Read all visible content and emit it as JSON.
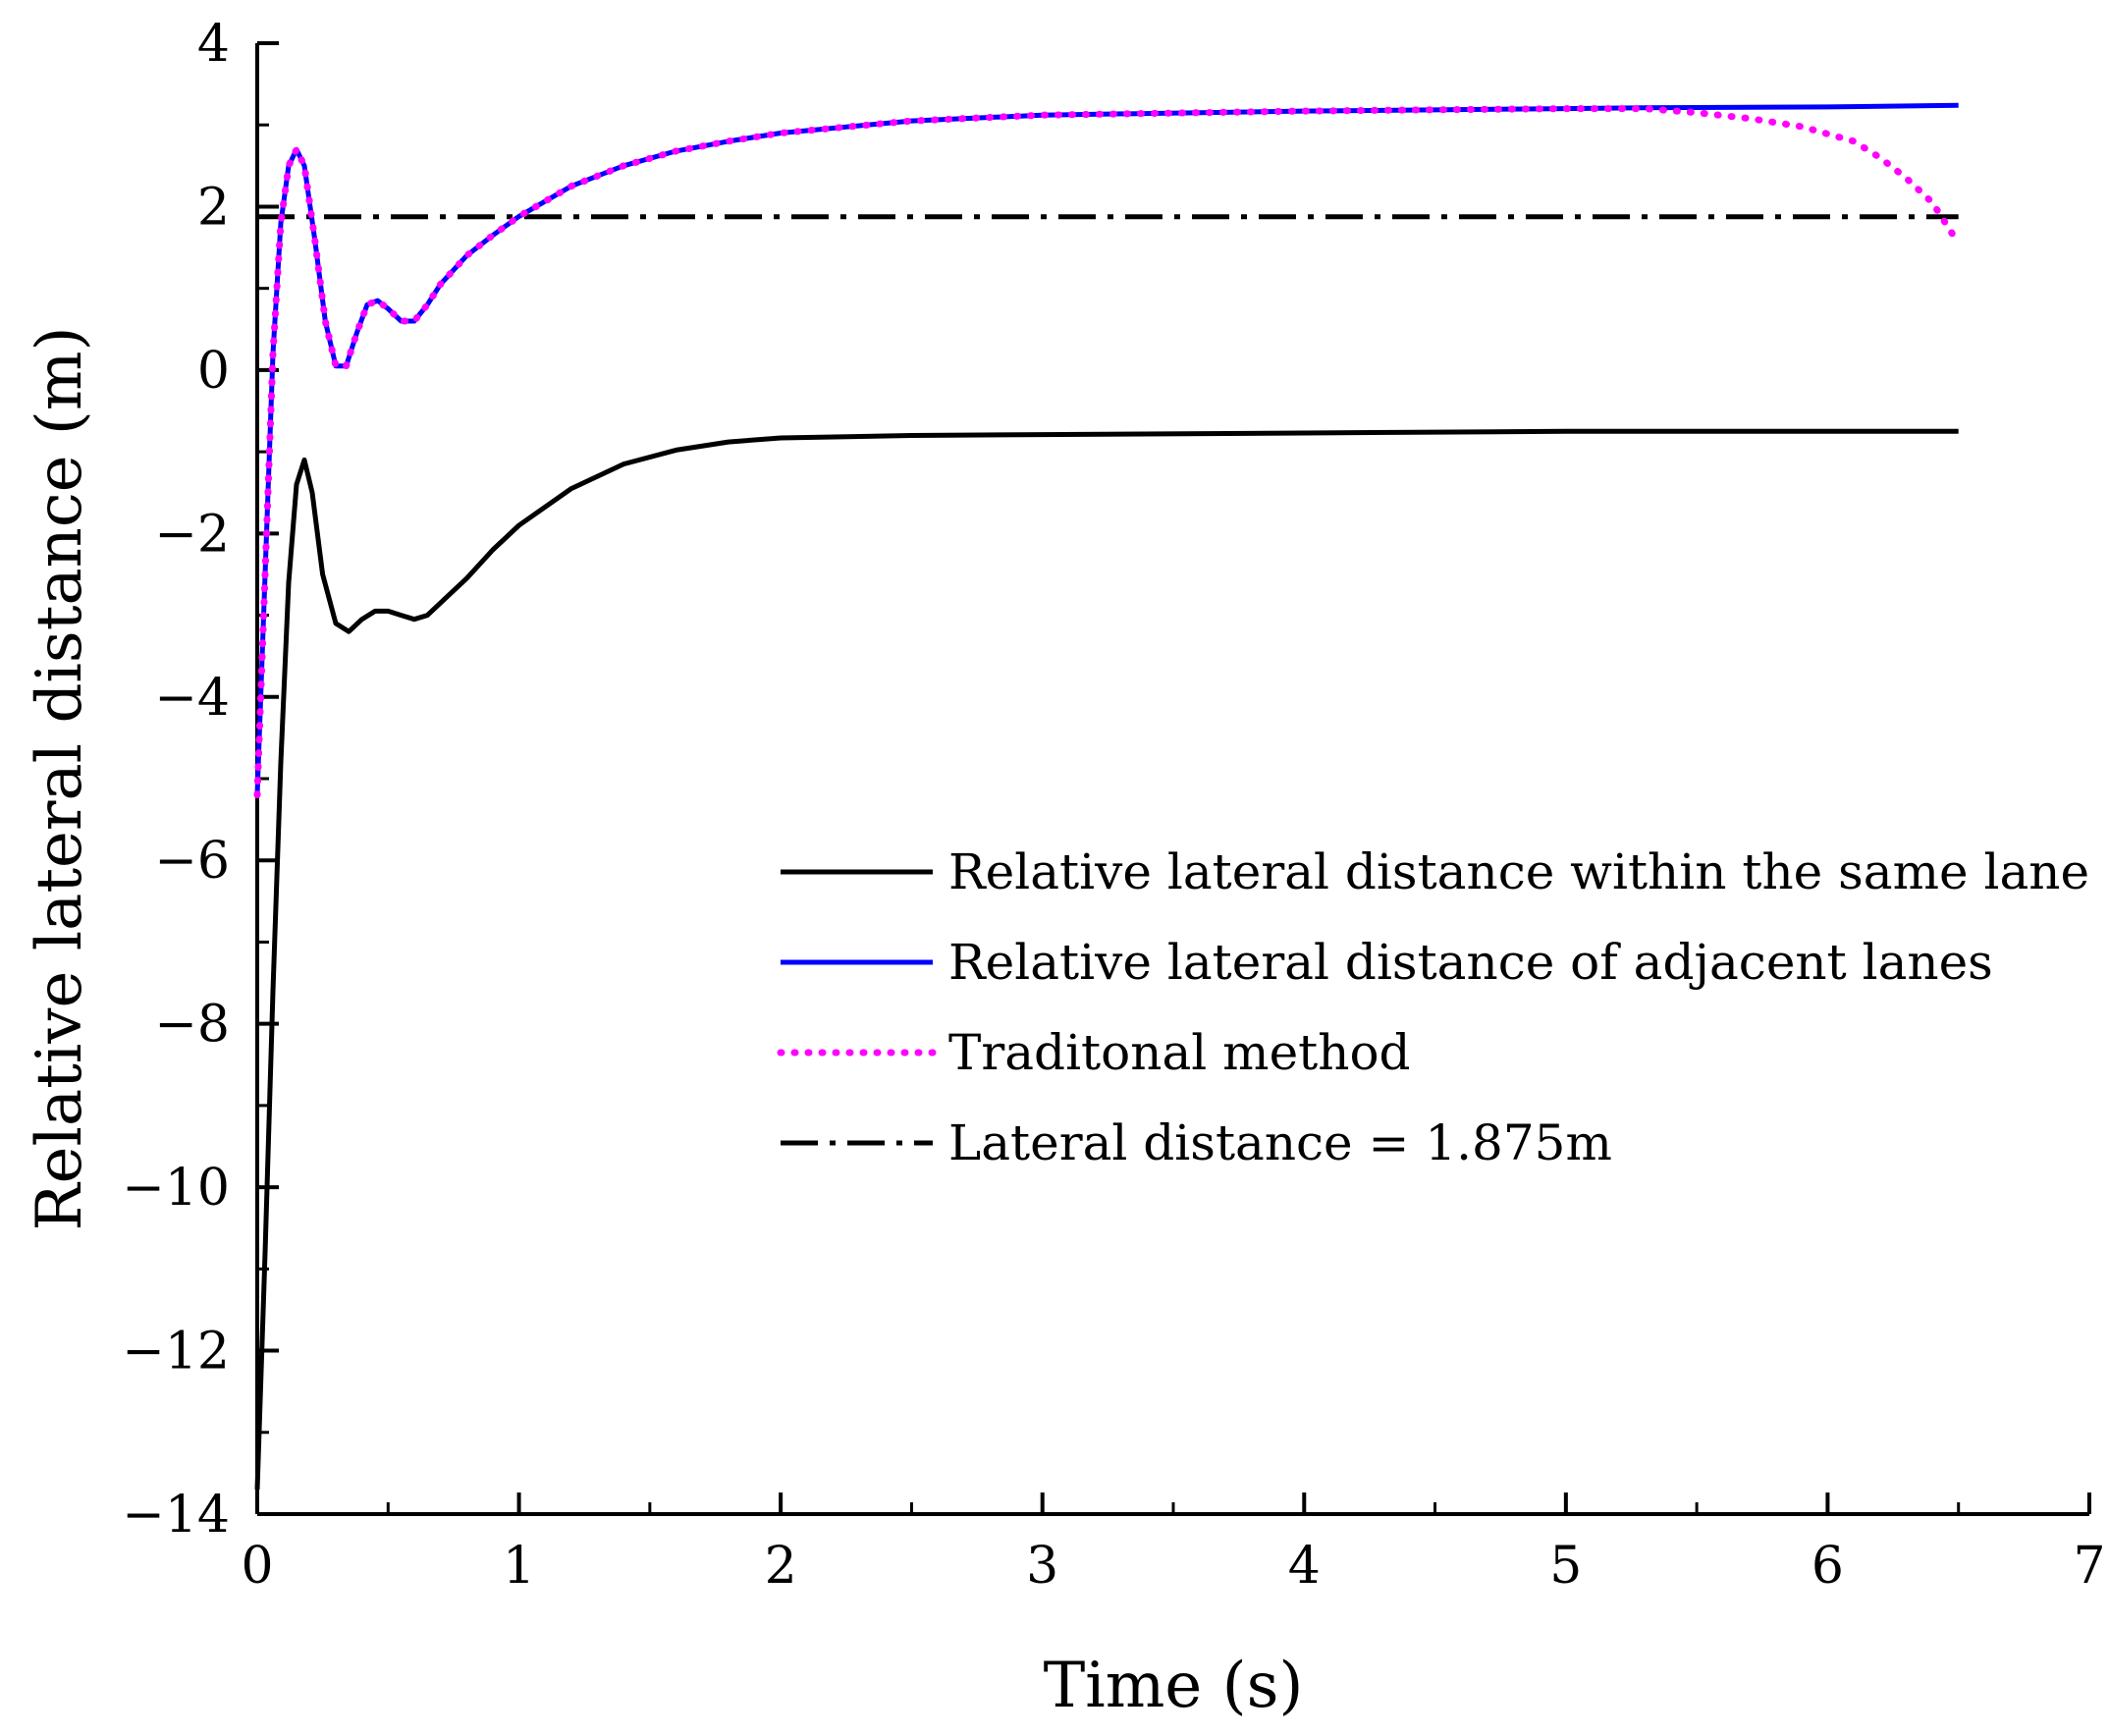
{
  "chart_data": {
    "type": "line",
    "title": "",
    "xlabel": "Time (s)",
    "ylabel": "Relative lateral distance (m)",
    "xlim": [
      0,
      7
    ],
    "ylim": [
      -14,
      4
    ],
    "xticks": [
      0,
      1,
      2,
      3,
      4,
      5,
      6,
      7
    ],
    "yticks": [
      4,
      2,
      0,
      -2,
      -4,
      -6,
      -8,
      -10,
      -12,
      -14
    ],
    "xtick_labels": [
      "0",
      "1",
      "2",
      "3",
      "4",
      "5",
      "6",
      "7"
    ],
    "ytick_labels": [
      "4",
      "2",
      "0",
      "−2",
      "−4",
      "−6",
      "−8",
      "−10",
      "−12",
      "−14"
    ],
    "grid": false,
    "legend_position": "center-right",
    "series": [
      {
        "name": "Relative lateral distance within the same lane",
        "color": "#000000",
        "style": "solid",
        "x": [
          0,
          0.03,
          0.06,
          0.09,
          0.12,
          0.15,
          0.18,
          0.21,
          0.25,
          0.3,
          0.35,
          0.4,
          0.45,
          0.5,
          0.55,
          0.6,
          0.65,
          0.7,
          0.8,
          0.9,
          1.0,
          1.2,
          1.4,
          1.6,
          1.8,
          2.0,
          2.5,
          3.0,
          4.0,
          5.0,
          6.0,
          6.5
        ],
        "y": [
          -13.7,
          -10.8,
          -7.6,
          -4.8,
          -2.6,
          -1.4,
          -1.1,
          -1.5,
          -2.5,
          -3.1,
          -3.2,
          -3.05,
          -2.95,
          -2.95,
          -3.0,
          -3.05,
          -3.0,
          -2.85,
          -2.55,
          -2.2,
          -1.9,
          -1.45,
          -1.15,
          -0.98,
          -0.88,
          -0.83,
          -0.8,
          -0.79,
          -0.77,
          -0.75,
          -0.75,
          -0.75
        ]
      },
      {
        "name": "Relative lateral distance of adjacent lanes",
        "color": "#0000ff",
        "style": "solid",
        "x": [
          0,
          0.03,
          0.06,
          0.09,
          0.12,
          0.15,
          0.18,
          0.22,
          0.26,
          0.3,
          0.34,
          0.38,
          0.42,
          0.46,
          0.5,
          0.55,
          0.6,
          0.65,
          0.7,
          0.8,
          0.9,
          1.0,
          1.2,
          1.4,
          1.6,
          1.8,
          2.0,
          2.5,
          3.0,
          4.0,
          5.0,
          5.3,
          6.0,
          6.5
        ],
        "y": [
          -5.2,
          -2.5,
          0.2,
          1.8,
          2.5,
          2.7,
          2.5,
          1.6,
          0.6,
          0.05,
          0.05,
          0.45,
          0.8,
          0.85,
          0.75,
          0.6,
          0.6,
          0.8,
          1.05,
          1.4,
          1.65,
          1.88,
          2.25,
          2.5,
          2.68,
          2.8,
          2.9,
          3.05,
          3.12,
          3.17,
          3.2,
          3.21,
          3.22,
          3.24
        ]
      },
      {
        "name": "Traditonal method",
        "color": "#ff00ff",
        "style": "dotted",
        "x": [
          0,
          0.03,
          0.06,
          0.09,
          0.12,
          0.15,
          0.18,
          0.22,
          0.26,
          0.3,
          0.34,
          0.38,
          0.42,
          0.46,
          0.5,
          0.55,
          0.6,
          0.65,
          0.7,
          0.8,
          0.9,
          1.0,
          1.2,
          1.4,
          1.6,
          1.8,
          2.0,
          2.5,
          3.0,
          4.0,
          5.0,
          5.3,
          5.5,
          5.7,
          5.9,
          6.1,
          6.2,
          6.3,
          6.4,
          6.5
        ],
        "y": [
          -5.2,
          -2.5,
          0.2,
          1.8,
          2.5,
          2.7,
          2.5,
          1.6,
          0.6,
          0.05,
          0.05,
          0.45,
          0.8,
          0.85,
          0.75,
          0.6,
          0.6,
          0.8,
          1.05,
          1.4,
          1.65,
          1.88,
          2.25,
          2.5,
          2.68,
          2.8,
          2.9,
          3.05,
          3.12,
          3.17,
          3.2,
          3.2,
          3.15,
          3.08,
          2.98,
          2.8,
          2.6,
          2.35,
          2.05,
          1.55
        ]
      },
      {
        "name": "Lateral distance = 1.875m",
        "color": "#000000",
        "style": "dashdot",
        "x": [
          0,
          6.5
        ],
        "y": [
          1.875,
          1.875
        ]
      }
    ]
  }
}
